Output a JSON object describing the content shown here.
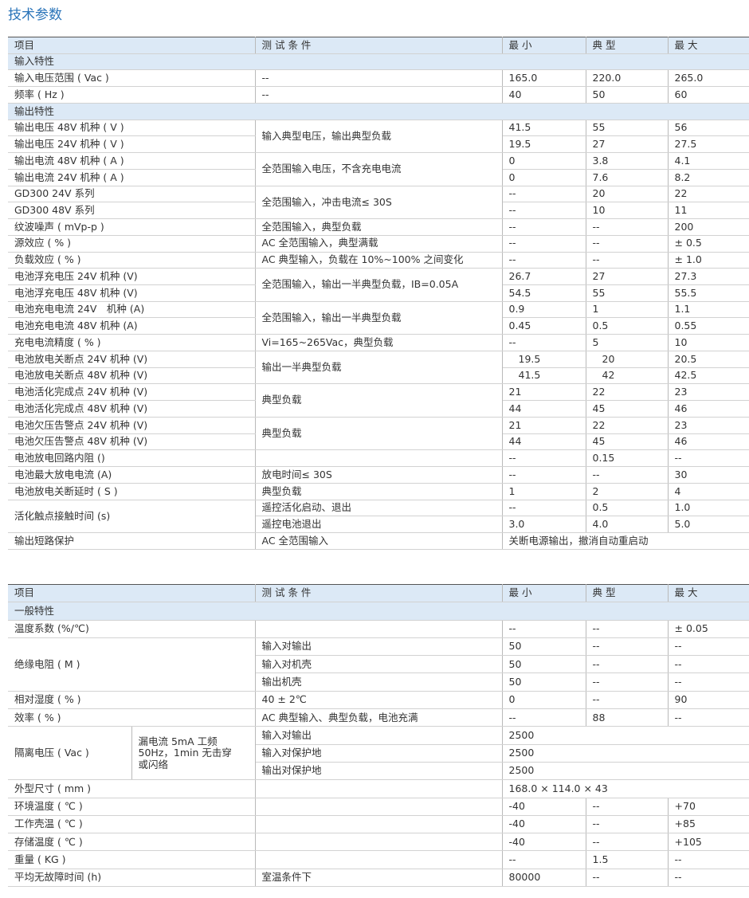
{
  "title": "技术参数",
  "table1": {
    "header": [
      "项目",
      "测 试 条 件",
      "最 小",
      "典 型",
      "最 大"
    ],
    "rows": [
      [
        "输入特性"
      ],
      [
        "输入电压范围 ( Vac )",
        "--",
        "165.0",
        "220.0",
        "265.0"
      ],
      [
        "频率 ( Hz )",
        "--",
        "40",
        "50",
        "60"
      ],
      [
        "输出特性"
      ],
      [
        "输出电压 48V 机种 ( V )",
        "输入典型电压，输出典型负载",
        "41.5",
        "55",
        "56"
      ],
      [
        "输出电压 24V 机种 ( V )",
        "19.5",
        "27",
        "27.5"
      ],
      [
        "输出电流 48V 机种 ( A )",
        "全范围输入电压，不含充电电流",
        "0",
        "3.8",
        "4.1"
      ],
      [
        "输出电流 24V 机种 ( A )",
        "0",
        "7.6",
        "8.2"
      ],
      [
        "GD300 24V 系列",
        "全范围输入，冲击电流≤ 30S",
        "--",
        "20",
        "22"
      ],
      [
        "GD300 48V 系列",
        "--",
        "10",
        "11"
      ],
      [
        "纹波噪声 ( mVp-p )",
        "全范围输入，典型负载",
        "--",
        "--",
        "200"
      ],
      [
        "源效应 ( % )",
        "AC 全范围输入，典型满载",
        "--",
        "--",
        "± 0.5"
      ],
      [
        "负载效应 ( % )",
        "AC 典型输入，负载在 10%~100% 之间变化",
        "--",
        "--",
        "± 1.0"
      ],
      [
        "电池浮充电压 24V 机种 (V)",
        "全范围输入，输出一半典型负载，IB=0.05A",
        "26.7",
        "27",
        "27.3"
      ],
      [
        "电池浮充电压 48V 机种 (V)",
        "54.5",
        "55",
        "55.5"
      ],
      [
        "电池充电电流 24V　机种 (A)",
        "全范围输入，输出一半典型负载",
        "0.9",
        "1",
        "1.1"
      ],
      [
        "电池充电电流 48V 机种 (A)",
        "0.45",
        "0.5",
        "0.55"
      ],
      [
        "充电电流精度 ( % )",
        "Vi=165~265Vac，典型负载",
        "--",
        "5",
        "10"
      ],
      [
        "电池放电关断点 24V 机种 (V)",
        "输出一半典型负载",
        "19.5",
        "20",
        "20.5"
      ],
      [
        "电池放电关断点 48V 机种 (V)",
        "41.5",
        "42",
        "42.5"
      ],
      [
        "电池活化完成点 24V 机种 (V)",
        "典型负载",
        "21",
        "22",
        "23"
      ],
      [
        "电池活化完成点 48V 机种 (V)",
        "44",
        "45",
        "46"
      ],
      [
        "电池欠压告警点 24V 机种 (V)",
        "典型负载",
        "21",
        "22",
        "23"
      ],
      [
        "电池欠压告警点 48V 机种 (V)",
        "44",
        "45",
        "46"
      ],
      [
        "电池放电回路内阻 ()",
        "--",
        "0.15",
        "--"
      ],
      [
        "电池最大放电电流 (A)",
        "放电时间≤ 30S",
        "--",
        "--",
        "30"
      ],
      [
        "电池放电关断延时 ( S )",
        "典型负载",
        "1",
        "2",
        "4"
      ],
      [
        "活化触点接触时间 (s)",
        "遥控活化启动、退出",
        "--",
        "0.5",
        "1.0"
      ],
      [
        "遥控电池退出",
        "3.0",
        "4.0",
        "5.0"
      ],
      [
        "输出短路保护",
        "AC 全范围输入",
        "关断电源输出，撤消自动重启动"
      ]
    ]
  },
  "table2": {
    "header": [
      "项目",
      "测 试 条 件",
      "最 小",
      "典 型",
      "最 大"
    ],
    "rows": [
      [
        "一般特性"
      ],
      [
        "温度系数 (%/℃)",
        "--",
        "--",
        "± 0.05"
      ],
      [
        "绝缘电阻 ( M )",
        "输入对输出",
        "50",
        "--",
        "--"
      ],
      [
        "输入对机壳",
        "50",
        "--",
        "--"
      ],
      [
        "输出机壳",
        "50",
        "--",
        "--"
      ],
      [
        "相对湿度 ( % )",
        "40 ± 2℃",
        "0",
        "--",
        "90"
      ],
      [
        "效率 ( % )",
        "AC 典型输入、典型负载，电池充满",
        "--",
        "88",
        "--"
      ],
      [
        "隔离电压 ( Vac )",
        "漏电流 5mA 工频 50Hz，1min 无击穿或闪络",
        "输入对输出",
        "2500"
      ],
      [
        "输入对保护地",
        "2500"
      ],
      [
        "输出对保护地",
        "2500"
      ],
      [
        "外型尺寸 ( mm )",
        "168.0 × 114.0 × 43"
      ],
      [
        "环境温度 ( ℃ )",
        "-40",
        "--",
        "+70"
      ],
      [
        "工作壳温 ( ℃ )",
        "-40",
        "--",
        "+85"
      ],
      [
        "存储温度 ( ℃ )",
        "-40",
        "--",
        "+105"
      ],
      [
        "重量 ( KG )",
        "--",
        "1.5",
        "--"
      ],
      [
        "平均无故障时间 (h)",
        "室温条件下",
        "80000",
        "--",
        "--"
      ]
    ]
  }
}
